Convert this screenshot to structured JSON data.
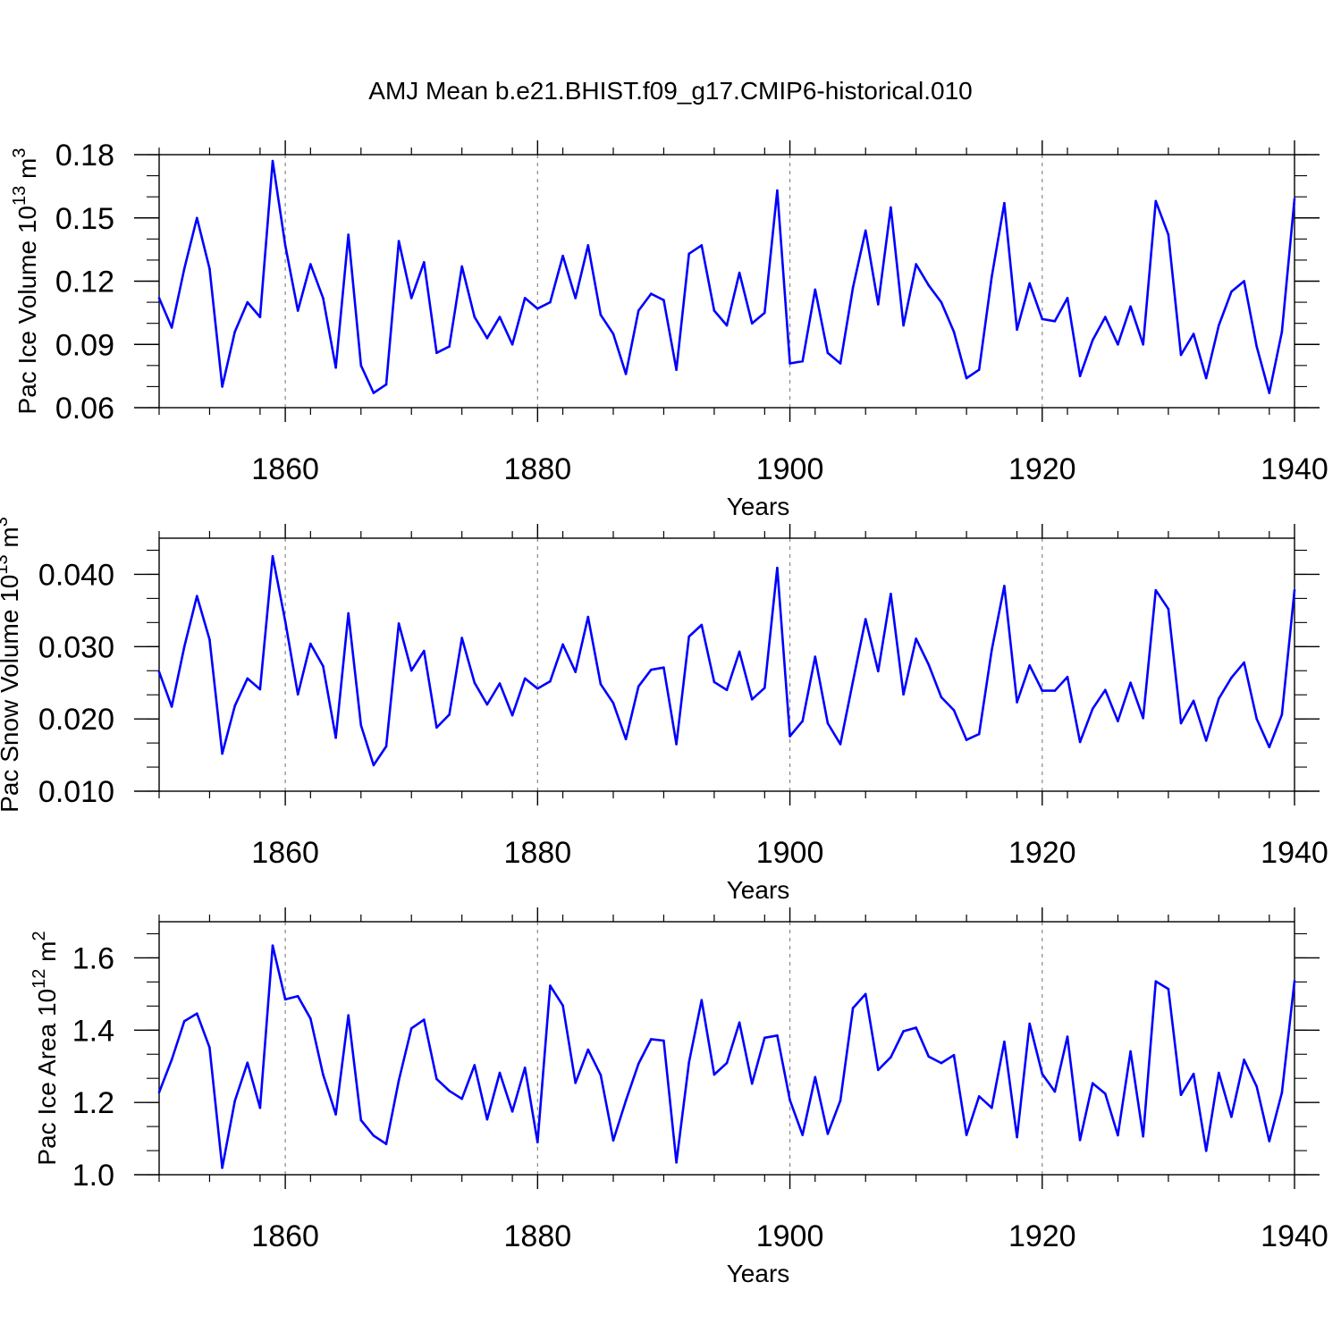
{
  "title": "AMJ Mean b.e21.BHIST.f09_g17.CMIP6-historical.010",
  "colors": {
    "series": "#0000ff",
    "axes": "#000000",
    "grid": "#888888"
  },
  "chart_data": [
    {
      "type": "line",
      "id": "ice-volume",
      "ylabel": {
        "base": "Pac Ice Volume 10",
        "sup": "13",
        "mid": " m",
        "sup2": "3"
      },
      "xlabel": "Years",
      "xlim": [
        1850,
        1940
      ],
      "ylim": [
        0.06,
        0.18
      ],
      "xticks": [
        "1860",
        "1880",
        "1900",
        "1920",
        "1940"
      ],
      "yticks": [
        "0.06",
        "0.09",
        "0.12",
        "0.15",
        "0.18"
      ],
      "x": [
        1850,
        1851,
        1852,
        1853,
        1854,
        1855,
        1856,
        1857,
        1858,
        1859,
        1860,
        1861,
        1862,
        1863,
        1864,
        1865,
        1866,
        1867,
        1868,
        1869,
        1870,
        1871,
        1872,
        1873,
        1874,
        1875,
        1876,
        1877,
        1878,
        1879,
        1880,
        1881,
        1882,
        1883,
        1884,
        1885,
        1886,
        1887,
        1888,
        1889,
        1890,
        1891,
        1892,
        1893,
        1894,
        1895,
        1896,
        1897,
        1898,
        1899,
        1900,
        1901,
        1902,
        1903,
        1904,
        1905,
        1906,
        1907,
        1908,
        1909,
        1910,
        1911,
        1912,
        1913,
        1914,
        1915,
        1916,
        1917,
        1918,
        1919,
        1920,
        1921,
        1922,
        1923,
        1924,
        1925,
        1926,
        1927,
        1928,
        1929,
        1930,
        1931,
        1932,
        1933,
        1934,
        1935,
        1936,
        1937,
        1938,
        1939,
        1940
      ],
      "values": [
        0.112,
        0.098,
        0.126,
        0.15,
        0.126,
        0.07,
        0.096,
        0.11,
        0.103,
        0.177,
        0.137,
        0.106,
        0.128,
        0.112,
        0.079,
        0.142,
        0.08,
        0.067,
        0.071,
        0.139,
        0.112,
        0.129,
        0.086,
        0.089,
        0.127,
        0.103,
        0.093,
        0.103,
        0.09,
        0.112,
        0.107,
        0.11,
        0.132,
        0.112,
        0.137,
        0.104,
        0.095,
        0.076,
        0.106,
        0.114,
        0.111,
        0.078,
        0.133,
        0.137,
        0.106,
        0.099,
        0.124,
        0.1,
        0.105,
        0.163,
        0.081,
        0.082,
        0.116,
        0.086,
        0.081,
        0.117,
        0.144,
        0.109,
        0.155,
        0.099,
        0.128,
        0.118,
        0.11,
        0.096,
        0.074,
        0.078,
        0.122,
        0.157,
        0.097,
        0.119,
        0.102,
        0.101,
        0.112,
        0.075,
        0.092,
        0.103,
        0.09,
        0.108,
        0.09,
        0.158,
        0.142,
        0.085,
        0.095,
        0.074,
        0.099,
        0.115,
        0.12,
        0.089,
        0.067,
        0.096,
        0.159
      ]
    },
    {
      "type": "line",
      "id": "snow-volume",
      "ylabel": {
        "base": "Pac Snow Volume 10",
        "sup": "13",
        "mid": " m",
        "sup2": "3"
      },
      "xlabel": "Years",
      "xlim": [
        1850,
        1940
      ],
      "ylim": [
        0.01,
        0.045
      ],
      "xticks": [
        "1860",
        "1880",
        "1900",
        "1920",
        "1940"
      ],
      "yticks": [
        "0.010",
        "0.020",
        "0.030",
        "0.040"
      ],
      "ytick_values": [
        0.01,
        0.02,
        0.03,
        0.04
      ],
      "x": [
        1850,
        1851,
        1852,
        1853,
        1854,
        1855,
        1856,
        1857,
        1858,
        1859,
        1860,
        1861,
        1862,
        1863,
        1864,
        1865,
        1866,
        1867,
        1868,
        1869,
        1870,
        1871,
        1872,
        1873,
        1874,
        1875,
        1876,
        1877,
        1878,
        1879,
        1880,
        1881,
        1882,
        1883,
        1884,
        1885,
        1886,
        1887,
        1888,
        1889,
        1890,
        1891,
        1892,
        1893,
        1894,
        1895,
        1896,
        1897,
        1898,
        1899,
        1900,
        1901,
        1902,
        1903,
        1904,
        1905,
        1906,
        1907,
        1908,
        1909,
        1910,
        1911,
        1912,
        1913,
        1914,
        1915,
        1916,
        1917,
        1918,
        1919,
        1920,
        1921,
        1922,
        1923,
        1924,
        1925,
        1926,
        1927,
        1928,
        1929,
        1930,
        1931,
        1932,
        1933,
        1934,
        1935,
        1936,
        1937,
        1938,
        1939,
        1940
      ],
      "values": [
        0.0265,
        0.0217,
        0.03,
        0.037,
        0.031,
        0.0152,
        0.0218,
        0.0256,
        0.0241,
        0.0425,
        0.0335,
        0.0234,
        0.0304,
        0.0273,
        0.0174,
        0.0346,
        0.0191,
        0.0136,
        0.0162,
        0.0332,
        0.0267,
        0.0294,
        0.0188,
        0.0206,
        0.0312,
        0.025,
        0.022,
        0.0249,
        0.0205,
        0.0256,
        0.0242,
        0.0252,
        0.0303,
        0.0265,
        0.0341,
        0.0248,
        0.0222,
        0.0172,
        0.0245,
        0.0268,
        0.0271,
        0.0165,
        0.0314,
        0.033,
        0.0251,
        0.024,
        0.0293,
        0.0227,
        0.0243,
        0.0409,
        0.0176,
        0.0197,
        0.0286,
        0.0194,
        0.0165,
        0.0252,
        0.0338,
        0.0266,
        0.0373,
        0.0234,
        0.0311,
        0.0275,
        0.023,
        0.0212,
        0.0171,
        0.0179,
        0.0295,
        0.0384,
        0.0223,
        0.0274,
        0.0239,
        0.0239,
        0.0258,
        0.0168,
        0.0214,
        0.024,
        0.0197,
        0.025,
        0.0201,
        0.0378,
        0.0352,
        0.0194,
        0.0225,
        0.017,
        0.0228,
        0.0257,
        0.0278,
        0.02,
        0.0161,
        0.0206,
        0.0378
      ]
    },
    {
      "type": "line",
      "id": "ice-area",
      "ylabel": {
        "base": "Pac Ice Area 10",
        "sup": "12",
        "mid": " m",
        "sup2": "2"
      },
      "xlabel": "Years",
      "xlim": [
        1850,
        1940
      ],
      "ylim": [
        1.0,
        1.7
      ],
      "xticks": [
        "1860",
        "1880",
        "1900",
        "1920",
        "1940"
      ],
      "yticks": [
        "1.0",
        "1.2",
        "1.4",
        "1.6"
      ],
      "ytick_values": [
        1.0,
        1.2,
        1.4,
        1.6
      ],
      "x": [
        1850,
        1851,
        1852,
        1853,
        1854,
        1855,
        1856,
        1857,
        1858,
        1859,
        1860,
        1861,
        1862,
        1863,
        1864,
        1865,
        1866,
        1867,
        1868,
        1869,
        1870,
        1871,
        1872,
        1873,
        1874,
        1875,
        1876,
        1877,
        1878,
        1879,
        1880,
        1881,
        1882,
        1883,
        1884,
        1885,
        1886,
        1887,
        1888,
        1889,
        1890,
        1891,
        1892,
        1893,
        1894,
        1895,
        1896,
        1897,
        1898,
        1899,
        1900,
        1901,
        1902,
        1903,
        1904,
        1905,
        1906,
        1907,
        1908,
        1909,
        1910,
        1911,
        1912,
        1913,
        1914,
        1915,
        1916,
        1917,
        1918,
        1919,
        1920,
        1921,
        1922,
        1923,
        1924,
        1925,
        1926,
        1927,
        1928,
        1929,
        1930,
        1931,
        1932,
        1933,
        1934,
        1935,
        1936,
        1937,
        1938,
        1939,
        1940
      ],
      "values": [
        1.228,
        1.318,
        1.425,
        1.446,
        1.352,
        1.019,
        1.204,
        1.31,
        1.185,
        1.634,
        1.485,
        1.494,
        1.432,
        1.277,
        1.167,
        1.441,
        1.151,
        1.108,
        1.085,
        1.261,
        1.405,
        1.429,
        1.265,
        1.232,
        1.21,
        1.303,
        1.153,
        1.282,
        1.175,
        1.296,
        1.09,
        1.523,
        1.468,
        1.254,
        1.346,
        1.276,
        1.095,
        1.205,
        1.307,
        1.375,
        1.371,
        1.034,
        1.311,
        1.483,
        1.277,
        1.309,
        1.421,
        1.252,
        1.379,
        1.385,
        1.206,
        1.11,
        1.27,
        1.113,
        1.205,
        1.461,
        1.5,
        1.29,
        1.325,
        1.397,
        1.407,
        1.327,
        1.309,
        1.331,
        1.11,
        1.217,
        1.185,
        1.368,
        1.104,
        1.418,
        1.279,
        1.23,
        1.382,
        1.096,
        1.253,
        1.224,
        1.109,
        1.341,
        1.106,
        1.535,
        1.514,
        1.221,
        1.279,
        1.066,
        1.282,
        1.16,
        1.318,
        1.244,
        1.093,
        1.227,
        1.536
      ]
    }
  ]
}
